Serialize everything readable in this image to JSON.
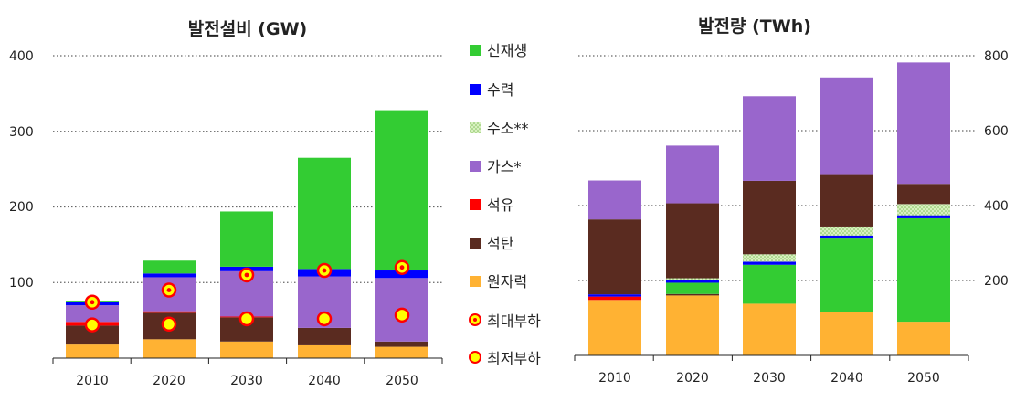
{
  "chart_data": [
    {
      "type": "bar",
      "stacked": true,
      "title": "발전설비 (GW)",
      "categories": [
        "2010",
        "2020",
        "2030",
        "2040",
        "2050"
      ],
      "ylim": [
        0,
        400
      ],
      "yticks": [
        "400",
        "300",
        "200",
        "100"
      ],
      "series": [
        {
          "name": "원자력",
          "values": [
            18,
            25,
            22,
            17,
            15
          ]
        },
        {
          "name": "석탄",
          "values": [
            25,
            35,
            32,
            23,
            7
          ]
        },
        {
          "name": "석유",
          "values": [
            5,
            2,
            1,
            0,
            0
          ]
        },
        {
          "name": "가스*",
          "values": [
            22,
            45,
            60,
            68,
            84
          ]
        },
        {
          "name": "수소**",
          "values": [
            0,
            0,
            0,
            0,
            0
          ]
        },
        {
          "name": "수력",
          "values": [
            4,
            5,
            6,
            10,
            10
          ]
        },
        {
          "name": "신재생",
          "values": [
            2,
            17,
            73,
            147,
            212
          ]
        }
      ],
      "markers": [
        {
          "name": "최대부하",
          "values": [
            74,
            90,
            110,
            116,
            120
          ]
        },
        {
          "name": "최저부하",
          "values": [
            44,
            45,
            52,
            52,
            57
          ]
        }
      ],
      "grid": true
    },
    {
      "type": "bar",
      "stacked": true,
      "title": "발전량 (TWh)",
      "categories": [
        "2010",
        "2020",
        "2030",
        "2040",
        "2050"
      ],
      "ylim": [
        0,
        800
      ],
      "yticks": [
        "800",
        "600",
        "400",
        "200"
      ],
      "series": [
        {
          "name": "원자력",
          "values": [
            148,
            160,
            138,
            116,
            90
          ]
        },
        {
          "name": "석유",
          "values": [
            9,
            0,
            0,
            0,
            0
          ]
        },
        {
          "name": "석탄",
          "values": [
            0,
            4,
            0,
            0,
            0
          ]
        },
        {
          "name": "신재생",
          "values": [
            0,
            30,
            104,
            196,
            276
          ]
        },
        {
          "name": "수력",
          "values": [
            6,
            8,
            8,
            8,
            8
          ]
        },
        {
          "name": "수소**",
          "values": [
            0,
            4,
            20,
            24,
            30
          ]
        },
        {
          "name": "석탄",
          "values": [
            200,
            200,
            196,
            140,
            54
          ]
        },
        {
          "name": "가스*",
          "values": [
            104,
            154,
            226,
            258,
            324
          ]
        }
      ],
      "grid": true
    }
  ],
  "legend": [
    {
      "label": "신재생",
      "color": "#33cc33",
      "kind": "swatch"
    },
    {
      "label": "수력",
      "color": "#0000ff",
      "kind": "swatch"
    },
    {
      "label": "수소**",
      "color": "#bfe3a0",
      "kind": "hatch"
    },
    {
      "label": "가스*",
      "color": "#9966cc",
      "kind": "swatch"
    },
    {
      "label": "석유",
      "color": "#ff0000",
      "kind": "swatch"
    },
    {
      "label": "석탄",
      "color": "#5a2b20",
      "kind": "swatch"
    },
    {
      "label": "원자력",
      "color": "#ffb233",
      "kind": "swatch"
    },
    {
      "label": "최대부하",
      "kind": "marker-peak"
    },
    {
      "label": "최저부하",
      "kind": "marker-low"
    }
  ],
  "colors": {
    "원자력": "#ffb233",
    "석탄": "#5a2b20",
    "석유": "#ff0000",
    "가스*": "#9966cc",
    "수소**": "#bfe3a0",
    "수력": "#0000ff",
    "신재생": "#33cc33",
    "marker_fill": "#ffff00",
    "marker_ring": "#ff0000"
  }
}
